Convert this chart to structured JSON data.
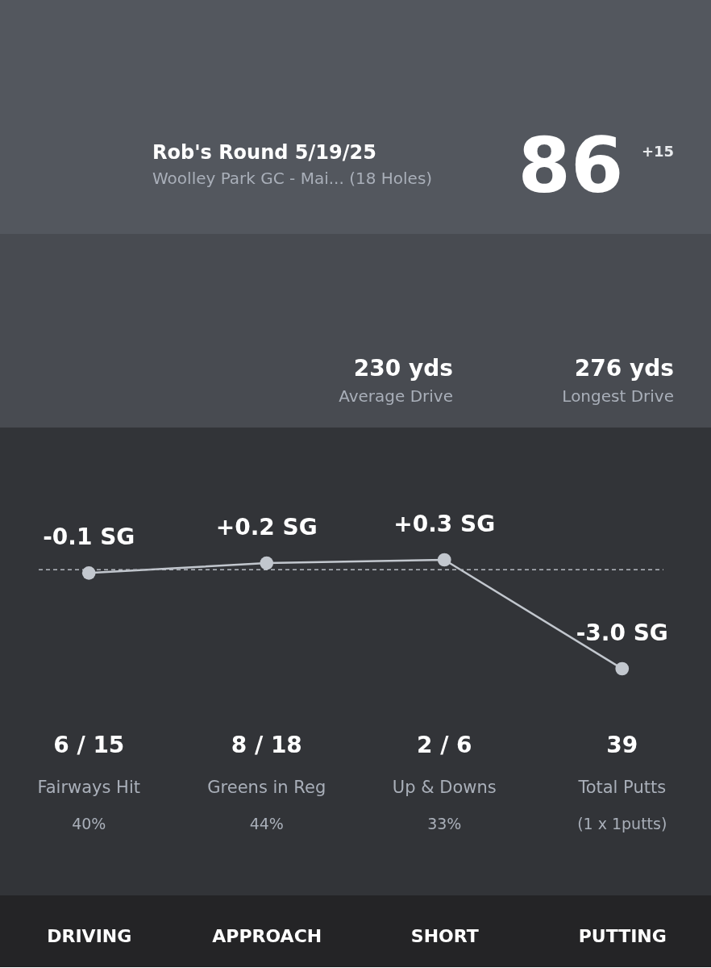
{
  "chart_data": [
    {
      "type": "other",
      "title": "Rob's Round 5/19/25",
      "subtitle": "Woolley Park GC - Mai... (18 Holes)",
      "annotations": [
        "86",
        "+15"
      ]
    },
    {
      "type": "other",
      "annotations": [
        "230 yds",
        "Average Drive",
        "276 yds",
        "Longest Drive"
      ]
    },
    {
      "type": "line",
      "categories": [
        "DRIVING",
        "APPROACH",
        "SHORT",
        "PUTTING"
      ],
      "values": [
        -0.1,
        0.2,
        0.3,
        -3.0
      ],
      "value_labels": [
        "-0.1 SG",
        "+0.2 SG",
        "+0.3 SG",
        "-3.0 SG"
      ],
      "color": "#c2c7ce",
      "marker": "circle",
      "tick_labels": "x",
      "ref_lines": [
        {
          "axis": "y",
          "value": 0,
          "line_style": "dashed",
          "color": "#b4b8bf"
        }
      ],
      "annotations": [
        "6 / 15",
        "Fairways Hit",
        "40%",
        "8 / 18",
        "Greens in Reg",
        "44%",
        "2 / 6",
        "Up & Downs",
        "33%",
        "39",
        "Total Putts",
        "(1 x 1putts)"
      ]
    }
  ]
}
